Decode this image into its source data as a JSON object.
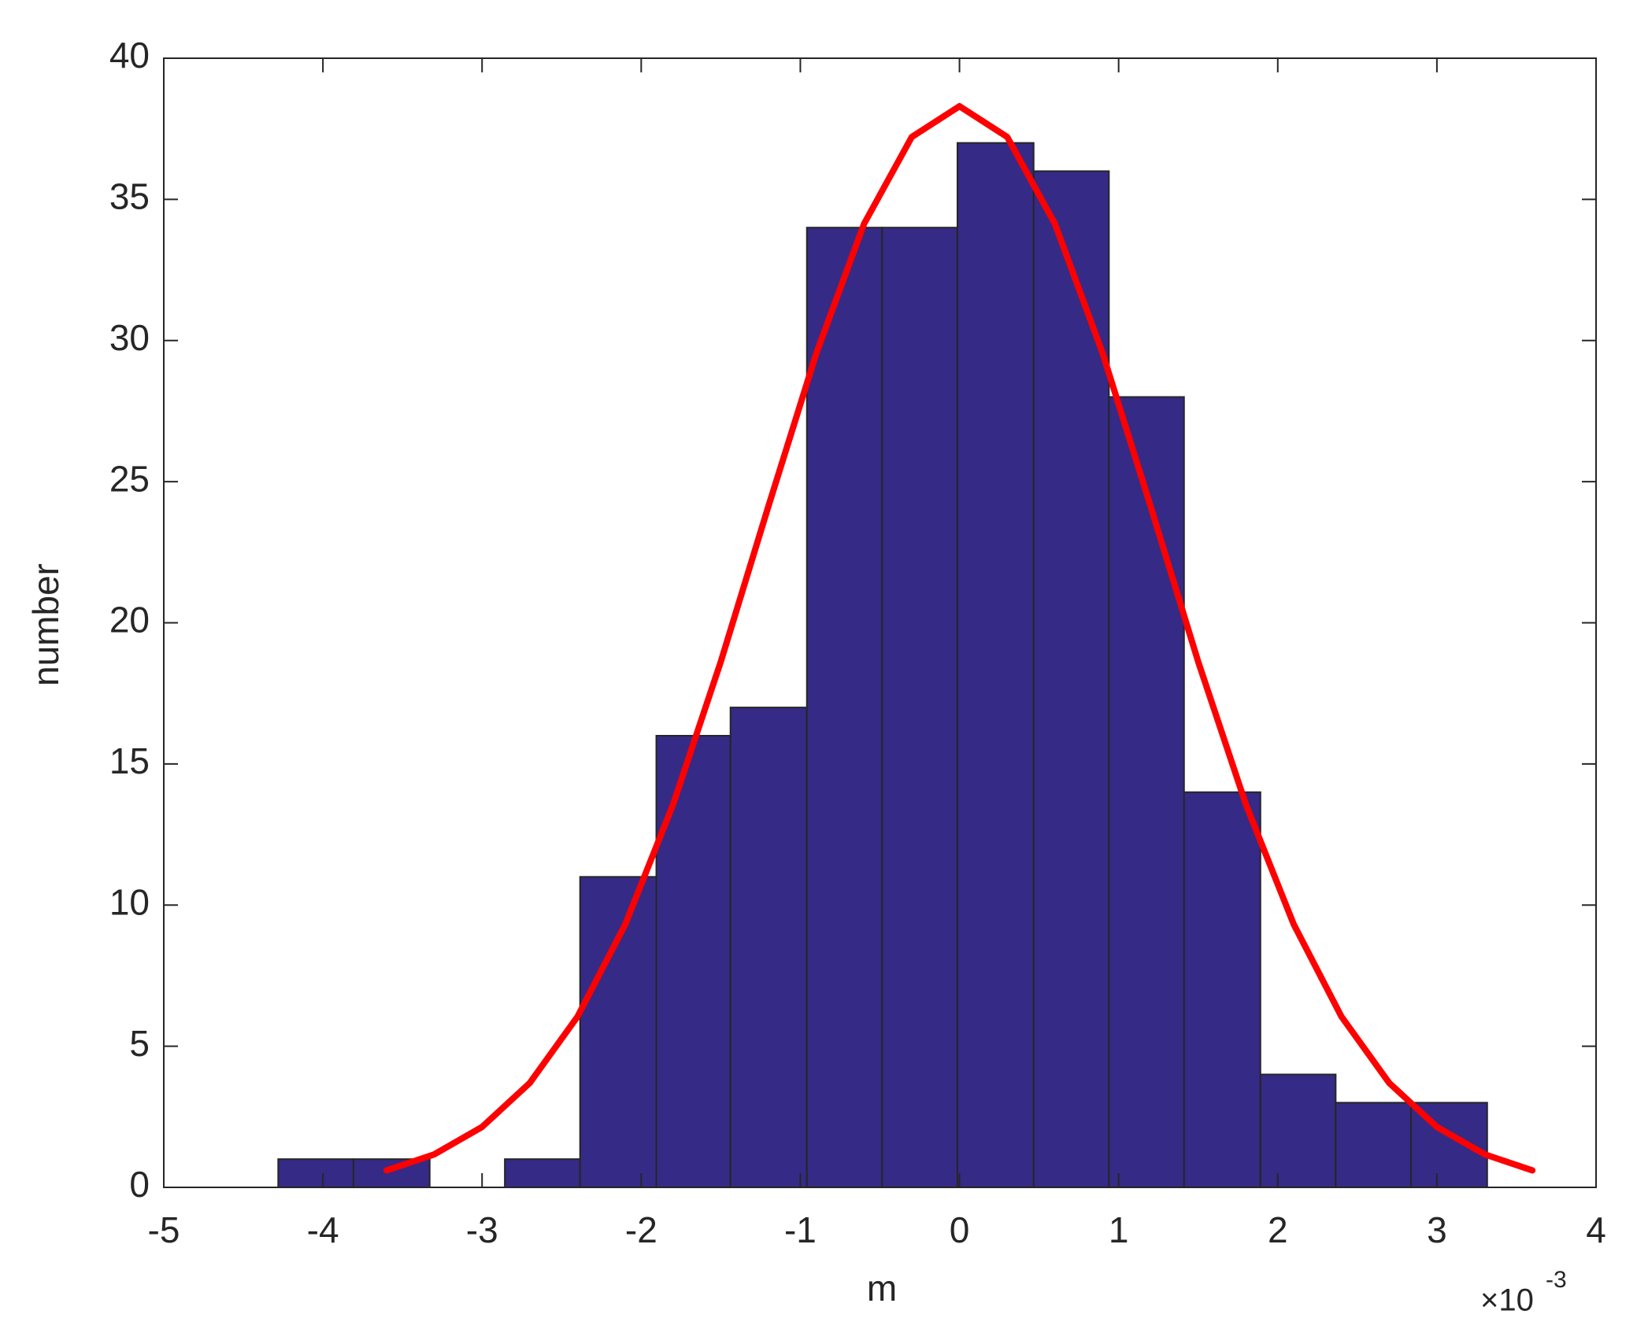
{
  "chart_data": {
    "type": "histogram",
    "xlabel": "m",
    "ylabel": "number",
    "x_multiplier": "×10",
    "x_exponent": "-3",
    "bins": [
      -4.281,
      -3.808,
      -3.329,
      -2.857,
      -2.384,
      -1.905,
      -1.439,
      -0.959,
      -0.486,
      -0.013,
      0.466,
      0.939,
      1.411,
      1.891,
      2.364,
      2.837,
      3.316
    ],
    "counts": [
      1,
      1,
      0,
      1,
      11,
      16,
      17,
      34,
      34,
      37,
      36,
      28,
      14,
      4,
      3,
      3
    ],
    "color": "#352a86",
    "fit": {
      "color": "#ff0000",
      "x": [
        -3.6,
        -3.3,
        -3.0,
        -2.7,
        -2.4,
        -2.1,
        -1.8,
        -1.5,
        -1.2,
        -0.9,
        -0.6,
        -0.3,
        0,
        0.3,
        0.6,
        0.9,
        1.2,
        1.5,
        1.8,
        2.1,
        2.4,
        2.7,
        3.0,
        3.3,
        3.6
      ],
      "values": [
        0.6,
        1.17,
        2.14,
        3.7,
        6.05,
        9.32,
        13.56,
        18.62,
        24.14,
        29.54,
        34.13,
        37.21,
        38.3,
        37.21,
        34.13,
        29.54,
        24.14,
        18.62,
        13.56,
        9.32,
        6.05,
        3.7,
        2.14,
        1.17,
        0.6
      ]
    },
    "xlim": [
      -5,
      4
    ],
    "xticks": [
      -5,
      -4,
      -3,
      -2,
      -1,
      0,
      1,
      2,
      3,
      4
    ],
    "ylim": [
      0,
      40
    ],
    "yticks": [
      0,
      5,
      10,
      15,
      20,
      25,
      30,
      35,
      40
    ]
  }
}
